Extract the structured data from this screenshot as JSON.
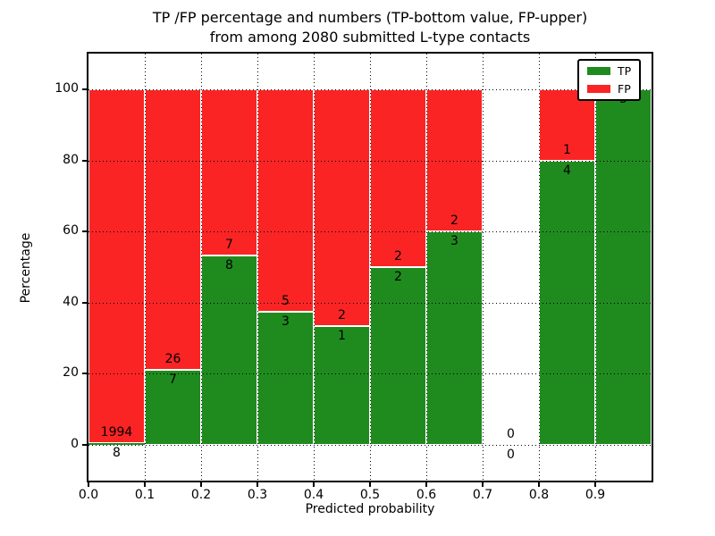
{
  "chart_data": {
    "type": "bar",
    "stacked": true,
    "title_line1": "TP /FP percentage and numbers (TP-bottom value, FP-upper)",
    "title_line2": "from among 2080 submitted L-type contacts",
    "xlabel": "Predicted probability",
    "ylabel": "Percentage",
    "x_tick_labels": [
      "0.0",
      "0.1",
      "0.2",
      "0.3",
      "0.4",
      "0.5",
      "0.6",
      "0.7",
      "0.8",
      "0.9"
    ],
    "y_tick_values": [
      0,
      20,
      40,
      60,
      80,
      100
    ],
    "y_tick_labels": [
      "0",
      "20",
      "40",
      "60",
      "80",
      "100"
    ],
    "xlim": [
      0.0,
      1.0
    ],
    "ylim": [
      -10.8,
      110.2
    ],
    "bin_width": 0.1,
    "grid_style": "dotted",
    "categories": [
      "0.0-0.1",
      "0.1-0.2",
      "0.2-0.3",
      "0.3-0.4",
      "0.4-0.5",
      "0.5-0.6",
      "0.6-0.7",
      "0.7-0.8",
      "0.8-0.9",
      "0.9-1.0"
    ],
    "series": [
      {
        "name": "TP",
        "color": "#1f8b1f",
        "values": [
          8,
          7,
          8,
          3,
          1,
          2,
          3,
          0,
          4,
          5
        ]
      },
      {
        "name": "FP",
        "color": "#fa2424",
        "values": [
          1994,
          26,
          7,
          5,
          2,
          2,
          2,
          0,
          1,
          0
        ]
      }
    ],
    "tp_percentages": [
      0.4,
      21.2,
      53.3,
      37.5,
      33.3,
      50.0,
      60.0,
      0.0,
      80.0,
      100.0
    ],
    "total_contacts": 2080,
    "legend": {
      "position": "upper right",
      "entries": [
        {
          "label": "TP",
          "color": "#1f8b1f"
        },
        {
          "label": "FP",
          "color": "#fa2424"
        }
      ]
    }
  }
}
